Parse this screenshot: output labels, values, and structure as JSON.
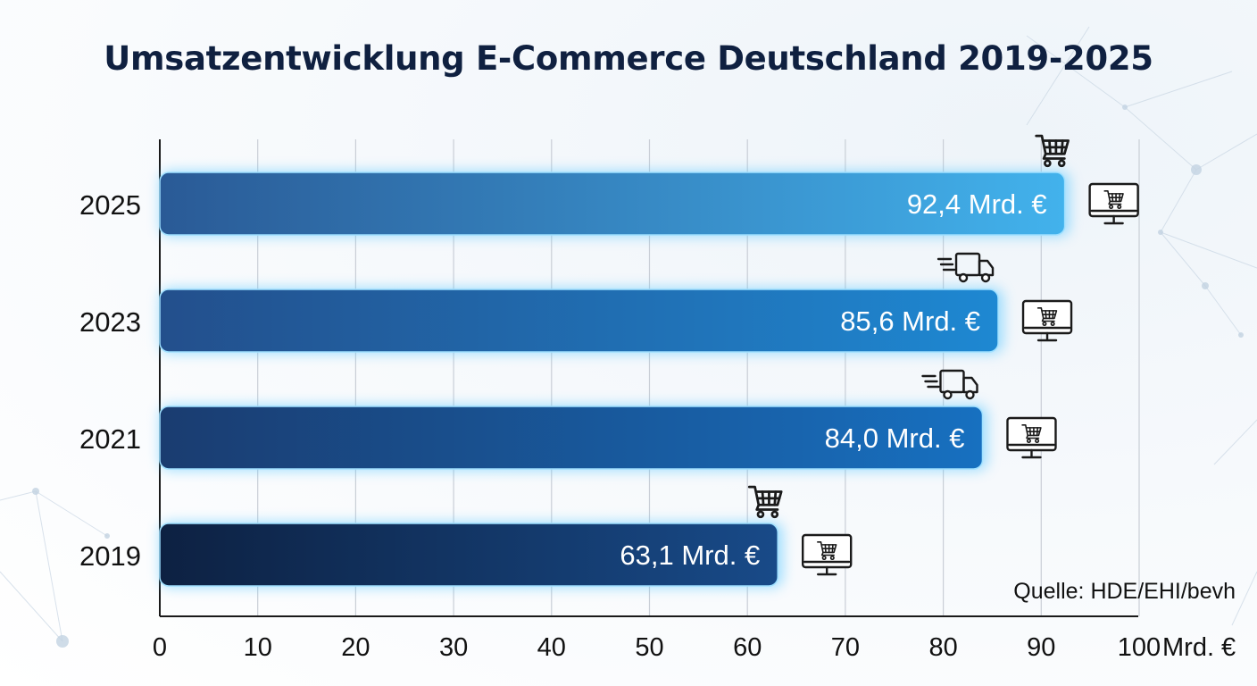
{
  "title": "Umsatzentwicklung E-Commerce Deutschland 2019-2025",
  "source": "Quelle: HDE/EHI/bevh",
  "chart_data": {
    "type": "bar",
    "orientation": "horizontal",
    "title": "Umsatzentwicklung E-Commerce Deutschland 2019-2025",
    "categories": [
      "2025",
      "2023",
      "2021",
      "2019"
    ],
    "values": [
      92.4,
      85.6,
      84.0,
      63.1
    ],
    "value_labels": [
      "92,4 Mrd. €",
      "85,6 Mrd. €",
      "84,0 Mrd. €",
      "63,1 Mrd. €"
    ],
    "x_ticks": [
      "0",
      "10",
      "20",
      "30",
      "40",
      "50",
      "60",
      "70",
      "80",
      "90",
      "100"
    ],
    "x_unit": "Mrd. €",
    "xlim": [
      0,
      100
    ],
    "grid": true,
    "bar_colors": [
      [
        "#2a5a96",
        "#42b2ec"
      ],
      [
        "#234f8c",
        "#1e88d2"
      ],
      [
        "#1a3c70",
        "#1770c0"
      ],
      [
        "#0d2142",
        "#184a88"
      ]
    ],
    "icons": [
      {
        "top": "shopping-cart-icon",
        "side": "monitor-cart-icon"
      },
      {
        "top": "delivery-truck-icon",
        "side": "monitor-cart-icon"
      },
      {
        "top": "delivery-truck-icon",
        "side": "monitor-cart-icon"
      },
      {
        "top": "shopping-cart-icon",
        "side": "monitor-cart-icon"
      }
    ]
  }
}
